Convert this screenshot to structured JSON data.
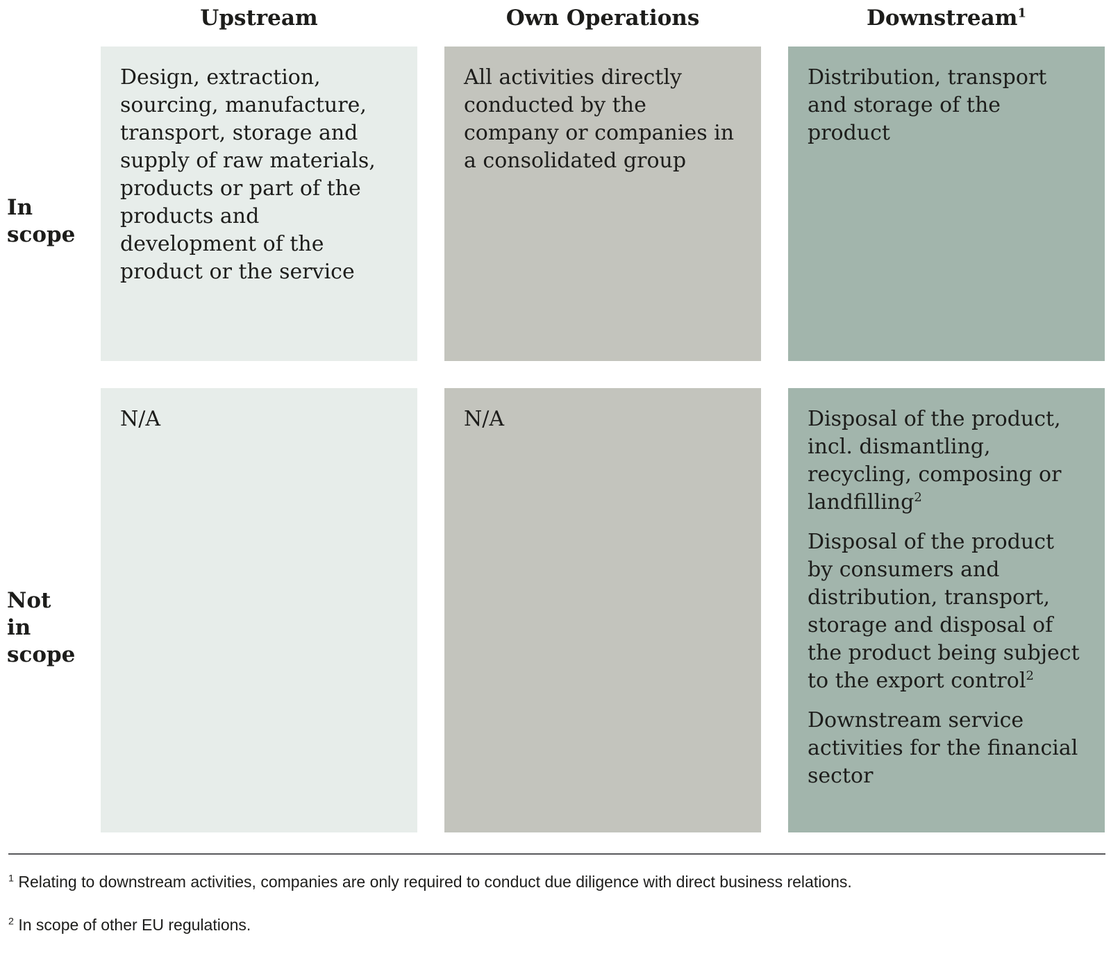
{
  "colors": {
    "page_bg": "#ffffff",
    "upstream_bg": "#e7edea",
    "own_operations_bg": "#c3c4bd",
    "downstream_bg": "#a2b5ac",
    "body_text": "#1d1d1b",
    "footnote_text": "#1d1d1b",
    "divider": "#58595b"
  },
  "columns": [
    {
      "header": "Upstream",
      "header_sup": ""
    },
    {
      "header": "Own Operations",
      "header_sup": ""
    },
    {
      "header": "Downstream",
      "header_sup": "1"
    }
  ],
  "rows": [
    {
      "label_lines": [
        "In",
        "scope"
      ],
      "cells": [
        {
          "paragraphs": [
            {
              "text": "Design, extraction, sourcing, manufacture, transport, storage and supply of raw materials, products or part of the products and development of the product or the service",
              "sup": ""
            }
          ]
        },
        {
          "paragraphs": [
            {
              "text": "All activities directly conducted by the company or companies in a consolidated group",
              "sup": ""
            }
          ]
        },
        {
          "paragraphs": [
            {
              "text": "Distribution, transport and storage of the product",
              "sup": ""
            }
          ]
        }
      ]
    },
    {
      "label_lines": [
        "Not",
        "in scope"
      ],
      "cells": [
        {
          "paragraphs": [
            {
              "text": "N/A",
              "sup": ""
            }
          ]
        },
        {
          "paragraphs": [
            {
              "text": "N/A",
              "sup": ""
            }
          ]
        },
        {
          "paragraphs": [
            {
              "text": "Disposal of the product, incl. dismantling, recycling, composing or landfilling",
              "sup": "2"
            },
            {
              "text": "Disposal of the product by consumers and distribution, transport, storage and disposal of the product being subject to the export control",
              "sup": "2"
            },
            {
              "text": "Downstream service activities for the financial sector",
              "sup": ""
            }
          ]
        }
      ]
    }
  ],
  "footnotes": [
    {
      "marker": "1",
      "text": "Relating to downstream activities, companies are only required to conduct due diligence with direct business relations."
    },
    {
      "marker": "2",
      "text": "In scope of other EU regulations."
    }
  ]
}
